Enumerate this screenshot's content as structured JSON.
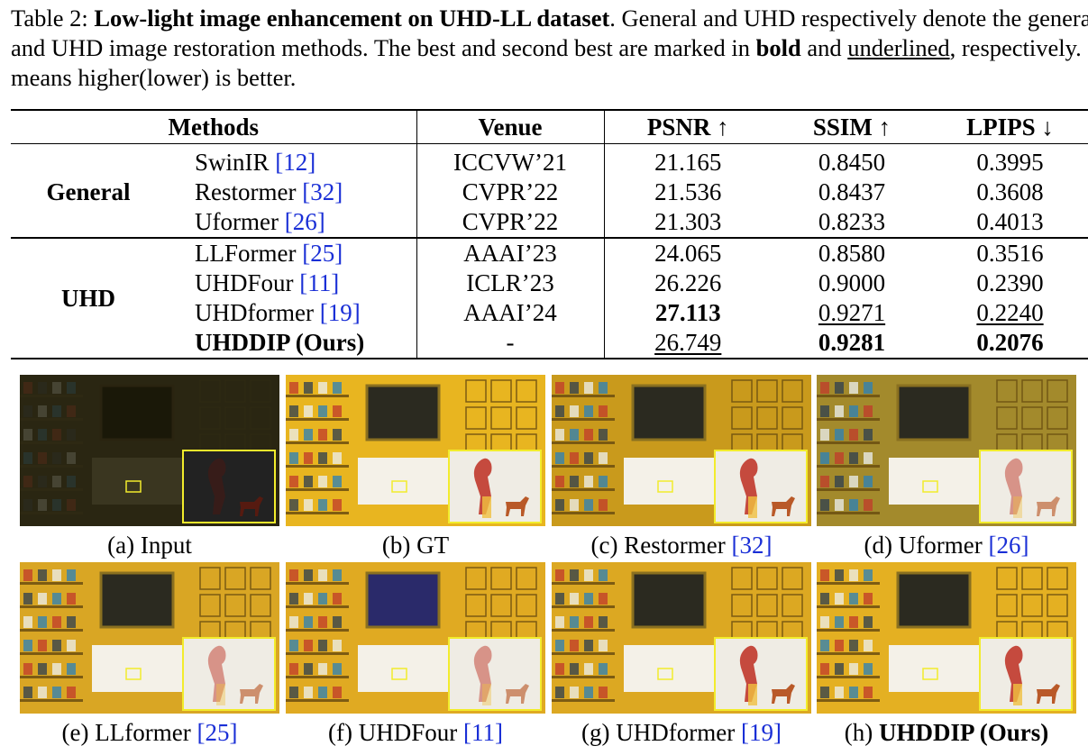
{
  "caption": {
    "prefix": "Table 2: ",
    "title": "Low-light image enhancement on UHD-LL dataset",
    "text1": ". General and UHD respectively denote the general and UHD image restoration methods. The best and second best are marked in ",
    "bold_word": "bold",
    "text2": " and ",
    "underline_word": "underlined",
    "text3": ", respectively. ↑(↓) means higher(lower) is better."
  },
  "table": {
    "headers": [
      "Methods",
      "Venue",
      "PSNR ↑",
      "SSIM ↑",
      "LPIPS ↓"
    ],
    "groups": [
      {
        "label": "General",
        "rows": [
          {
            "method": "SwinIR ",
            "ref": "[12]",
            "venue": "ICCVW’21",
            "psnr": "21.165",
            "ssim": "0.8450",
            "lpips": "0.3995"
          },
          {
            "method": "Restormer ",
            "ref": "[32]",
            "venue": "CVPR’22",
            "psnr": "21.536",
            "ssim": "0.8437",
            "lpips": "0.3608"
          },
          {
            "method": "Uformer ",
            "ref": "[26]",
            "venue": "CVPR’22",
            "psnr": "21.303",
            "ssim": "0.8233",
            "lpips": "0.4013"
          }
        ]
      },
      {
        "label": "UHD",
        "rows": [
          {
            "method": "LLFormer ",
            "ref": "[25]",
            "venue": "AAAI’23",
            "psnr": "24.065",
            "ssim": "0.8580",
            "lpips": "0.3516"
          },
          {
            "method": "UHDFour ",
            "ref": "[11]",
            "venue": "ICLR’23",
            "psnr": "26.226",
            "ssim": "0.9000",
            "lpips": "0.2390"
          },
          {
            "method": "UHDformer ",
            "ref": "[19]",
            "venue": "AAAI’24",
            "psnr": "27.113",
            "ssim": "0.9271",
            "lpips": "0.2240"
          },
          {
            "method": "UHDDIP (Ours)",
            "ref": "",
            "venue": "-",
            "psnr": "26.749",
            "ssim": "0.9281",
            "lpips": "0.2076"
          }
        ]
      }
    ]
  },
  "figure": {
    "panels": [
      {
        "label": "(a) Input",
        "ref": "",
        "tone": "#2a2612"
      },
      {
        "label": "(b) GT",
        "ref": "",
        "tone": "#e8b520"
      },
      {
        "label": "(c) Restormer ",
        "ref": "[32]",
        "tone": "#c99a1c"
      },
      {
        "label": "(d) Uformer ",
        "ref": "[26]",
        "tone": "#a38a2c"
      },
      {
        "label": "(e) LLformer ",
        "ref": "[25]",
        "tone": "#d9a624"
      },
      {
        "label": "(f) UHDFour ",
        "ref": "[11]",
        "tone": "#e0aa22"
      },
      {
        "label": "(g) UHDformer ",
        "ref": "[19]",
        "tone": "#dca822"
      },
      {
        "label": "(h) ",
        "bold": "UHDDIP (Ours)",
        "ref": "",
        "tone": "#e4b022"
      }
    ]
  }
}
